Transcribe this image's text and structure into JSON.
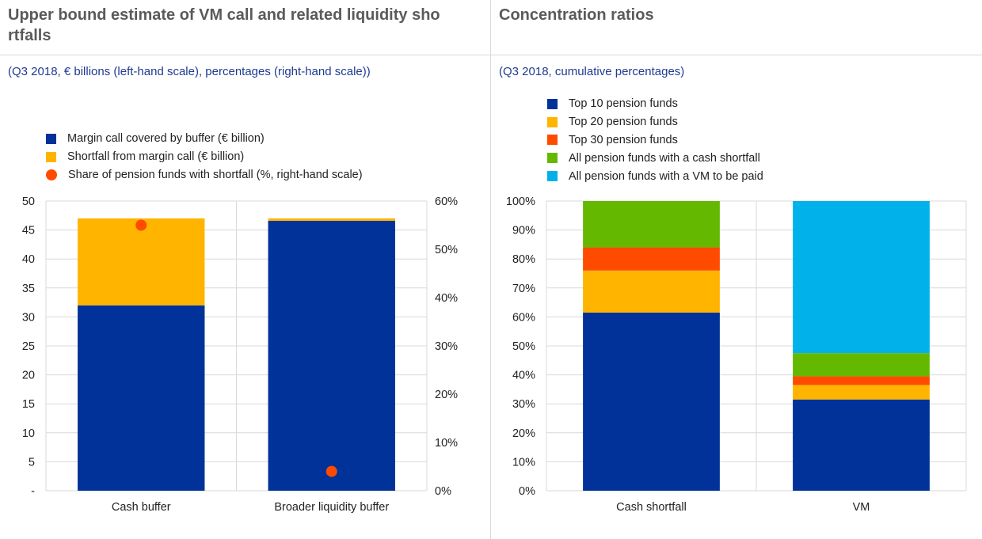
{
  "colors": {
    "blue": "#003299",
    "yellow": "#ffb400",
    "orange": "#ff4b00",
    "green": "#65b800",
    "cyan": "#00b1ea",
    "grid": "#d9d9d9"
  },
  "left": {
    "title": "Upper bound estimate of VM call and related liquidity sho rtfalls",
    "subtitle": "(Q3 2018, € billions (left-hand scale), percentages (right-hand scale))",
    "legend": [
      {
        "label": "Margin call covered by buffer (€ billion)",
        "color": "#003299",
        "shape": "square"
      },
      {
        "label": "Shortfall from margin call (€ billion)",
        "color": "#ffb400",
        "shape": "square"
      },
      {
        "label": "Share of pension funds with shortfall (%, right-hand scale)",
        "color": "#ff4b00",
        "shape": "dot"
      }
    ]
  },
  "right": {
    "title": "Concentration ratios",
    "subtitle": "(Q3 2018, cumulative percentages)",
    "legend": [
      {
        "label": "Top 10 pension funds",
        "color": "#003299"
      },
      {
        "label": "Top 20 pension funds",
        "color": "#ffb400"
      },
      {
        "label": "Top 30 pension funds",
        "color": "#ff4b00"
      },
      {
        "label": "All pension funds with a cash shortfall",
        "color": "#65b800"
      },
      {
        "label": "All pension funds with a VM to be paid",
        "color": "#00b1ea"
      }
    ]
  },
  "chart_data": [
    {
      "type": "bar",
      "stacked": true,
      "title": "Upper bound estimate of VM call and related liquidity sho rtfalls",
      "categories": [
        "Cash buffer",
        "Broader liquidity buffer"
      ],
      "series": [
        {
          "name": "Margin call covered by buffer (€ billion)",
          "values": [
            32,
            46.6
          ],
          "color": "#003299",
          "axis": "left"
        },
        {
          "name": "Shortfall from margin call (€ billion)",
          "values": [
            15,
            0.4
          ],
          "color": "#ffb400",
          "axis": "left"
        },
        {
          "name": "Share of pension funds with shortfall (%, right-hand scale)",
          "values": [
            55,
            4
          ],
          "color": "#ff4b00",
          "axis": "right",
          "mark": "dot"
        }
      ],
      "ylim": [
        0,
        50
      ],
      "yticks": [
        "-",
        "5",
        "10",
        "15",
        "20",
        "25",
        "30",
        "35",
        "40",
        "45",
        "50"
      ],
      "y2lim": [
        0,
        60
      ],
      "y2ticks": [
        "0%",
        "10%",
        "20%",
        "30%",
        "40%",
        "50%",
        "60%"
      ],
      "grid": true,
      "legend_position": "top-left"
    },
    {
      "type": "bar",
      "stacked": true,
      "title": "Concentration ratios",
      "categories": [
        "Cash shortfall",
        "VM"
      ],
      "series": [
        {
          "name": "Top 10 pension funds",
          "values": [
            61.5,
            31.5
          ],
          "color": "#003299"
        },
        {
          "name": "Top 20 pension funds",
          "values": [
            14.5,
            5
          ],
          "color": "#ffb400"
        },
        {
          "name": "Top 30 pension funds",
          "values": [
            8,
            3
          ],
          "color": "#ff4b00"
        },
        {
          "name": "All pension funds with a cash shortfall",
          "values": [
            16,
            8
          ],
          "color": "#65b800"
        },
        {
          "name": "All pension funds with a VM to be paid",
          "values": [
            0,
            52.5
          ],
          "color": "#00b1ea"
        }
      ],
      "ylim": [
        0,
        100
      ],
      "yticks": [
        "0%",
        "10%",
        "20%",
        "30%",
        "40%",
        "50%",
        "60%",
        "70%",
        "80%",
        "90%",
        "100%"
      ],
      "grid": true,
      "legend_position": "top-left"
    }
  ]
}
